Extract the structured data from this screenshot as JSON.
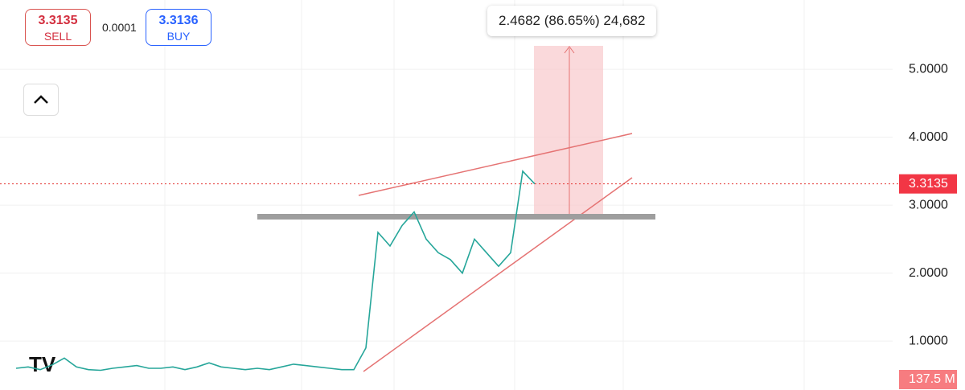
{
  "sell": {
    "price": "3.3135",
    "label": "SELL"
  },
  "spread": "0.0001",
  "buy": {
    "price": "3.3136",
    "label": "BUY"
  },
  "annotation": "2.4682 (86.65%) 24,682",
  "volume_label": "137.5 M",
  "chart_data": {
    "type": "line",
    "color": "#26a69a",
    "values": [
      0.6,
      0.62,
      0.58,
      0.65,
      0.75,
      0.62,
      0.58,
      0.57,
      0.6,
      0.62,
      0.64,
      0.6,
      0.6,
      0.62,
      0.58,
      0.62,
      0.68,
      0.62,
      0.6,
      0.58,
      0.6,
      0.58,
      0.62,
      0.66,
      0.64,
      0.62,
      0.6,
      0.58,
      0.58,
      0.9,
      2.6,
      2.4,
      2.7,
      2.9,
      2.5,
      2.3,
      2.2,
      2.0,
      2.5,
      2.3,
      2.1,
      2.3,
      3.5,
      3.3135
    ],
    "ylim": [
      0.28,
      6.02
    ],
    "yticks": [
      {
        "value": 1,
        "label": "1.0000"
      },
      {
        "value": 2,
        "label": "2.0000"
      },
      {
        "value": 3,
        "label": "3.0000"
      },
      {
        "value": 4,
        "label": "4.0000"
      },
      {
        "value": 5,
        "label": "5.0000"
      }
    ],
    "last_price": {
      "value": 3.3135,
      "label": "3.3135"
    },
    "grid": true
  }
}
